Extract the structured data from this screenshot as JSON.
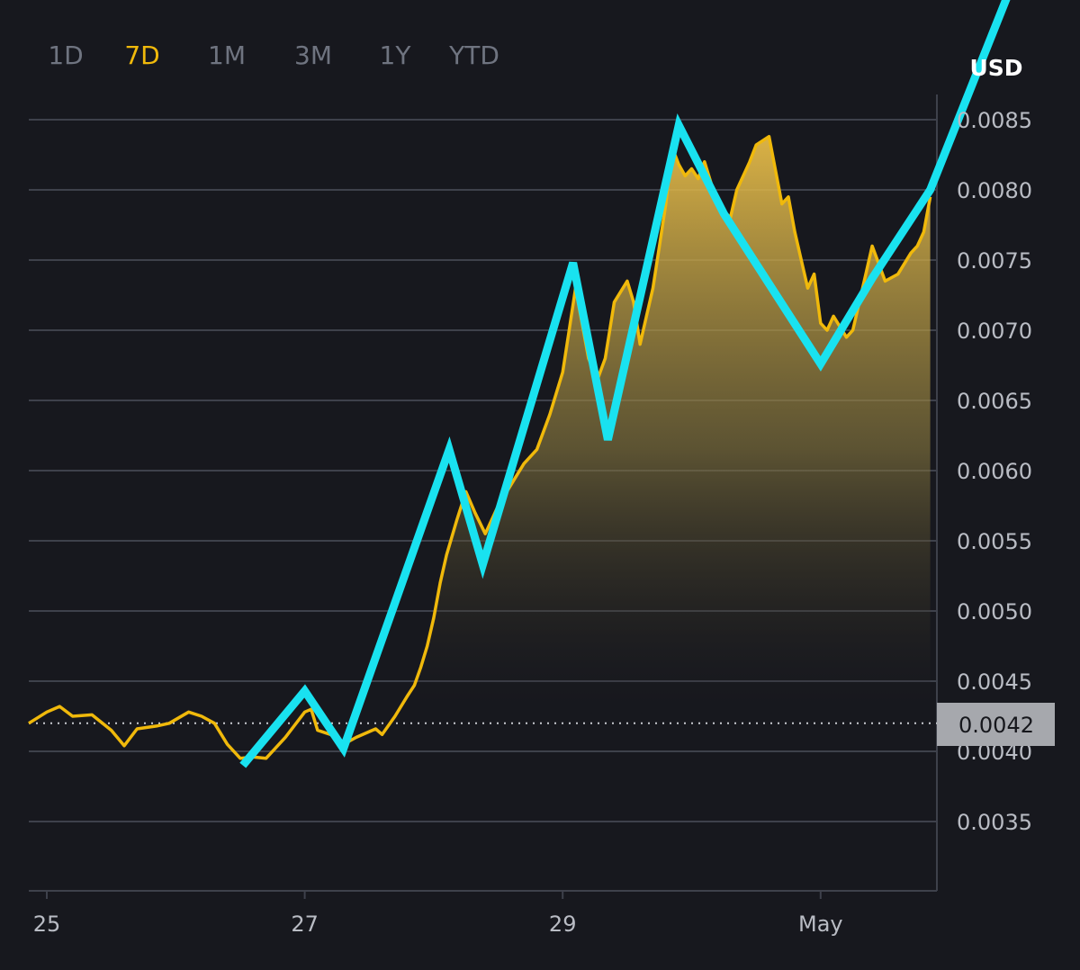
{
  "tabs": [
    {
      "label": "1D",
      "active": false
    },
    {
      "label": "7D",
      "active": true
    },
    {
      "label": "1M",
      "active": false
    },
    {
      "label": "3M",
      "active": false
    },
    {
      "label": "1Y",
      "active": false
    },
    {
      "label": "YTD",
      "active": false
    }
  ],
  "colors": {
    "background": "#17181e",
    "price_line": "#f0b90b",
    "overlay_line": "#19e2f0",
    "grid": "#3e414b",
    "tab_active": "#f0b90b",
    "tab_inactive": "#6f7480",
    "price_tag_bg": "#a6a8ad"
  },
  "chart_data": {
    "type": "line",
    "unit": "USD",
    "ylim": [
      0.003,
      0.0087
    ],
    "y_ticks": [
      "0.0035",
      "0.0040",
      "0.0045",
      "0.0050",
      "0.0055",
      "0.0060",
      "0.0065",
      "0.0070",
      "0.0075",
      "0.0080",
      "0.0085"
    ],
    "x_ticks": [
      {
        "label": "25",
        "t": 0
      },
      {
        "label": "27",
        "t": 2
      },
      {
        "label": "29",
        "t": 4
      },
      {
        "label": "May",
        "t": 6
      }
    ],
    "current_price": {
      "label": "0.0042",
      "value": 0.0042
    },
    "series": [
      {
        "points": [
          [
            -0.14,
            0.0042
          ],
          [
            0.0,
            0.00428
          ],
          [
            0.1,
            0.00432
          ],
          [
            0.2,
            0.00425
          ],
          [
            0.35,
            0.00426
          ],
          [
            0.5,
            0.00415
          ],
          [
            0.6,
            0.00404
          ],
          [
            0.7,
            0.00416
          ],
          [
            0.85,
            0.00418
          ],
          [
            0.95,
            0.0042
          ],
          [
            1.1,
            0.00428
          ],
          [
            1.2,
            0.00425
          ],
          [
            1.3,
            0.0042
          ],
          [
            1.4,
            0.00405
          ],
          [
            1.5,
            0.00395
          ],
          [
            1.6,
            0.00396
          ],
          [
            1.7,
            0.00395
          ],
          [
            1.85,
            0.0041
          ],
          [
            2.0,
            0.00428
          ],
          [
            2.05,
            0.0043
          ],
          [
            2.1,
            0.00415
          ],
          [
            2.2,
            0.00412
          ],
          [
            2.3,
            0.00405
          ],
          [
            2.4,
            0.0041
          ],
          [
            2.55,
            0.00416
          ],
          [
            2.6,
            0.00412
          ],
          [
            2.7,
            0.00425
          ],
          [
            2.8,
            0.0044
          ],
          [
            2.85,
            0.00447
          ],
          [
            2.9,
            0.0046
          ],
          [
            2.95,
            0.00475
          ],
          [
            3.0,
            0.00495
          ],
          [
            3.05,
            0.0052
          ],
          [
            3.1,
            0.0054
          ],
          [
            3.18,
            0.00565
          ],
          [
            3.25,
            0.00585
          ],
          [
            3.32,
            0.0057
          ],
          [
            3.4,
            0.00555
          ],
          [
            3.5,
            0.00575
          ],
          [
            3.6,
            0.0059
          ],
          [
            3.7,
            0.00605
          ],
          [
            3.8,
            0.00615
          ],
          [
            3.9,
            0.0064
          ],
          [
            4.0,
            0.0067
          ],
          [
            4.05,
            0.007
          ],
          [
            4.1,
            0.0073
          ],
          [
            4.15,
            0.00705
          ],
          [
            4.2,
            0.0068
          ],
          [
            4.27,
            0.00665
          ],
          [
            4.33,
            0.0068
          ],
          [
            4.4,
            0.0072
          ],
          [
            4.5,
            0.00735
          ],
          [
            4.55,
            0.0072
          ],
          [
            4.6,
            0.0069
          ],
          [
            4.65,
            0.0071
          ],
          [
            4.7,
            0.0073
          ],
          [
            4.75,
            0.0076
          ],
          [
            4.8,
            0.0079
          ],
          [
            4.85,
            0.0083
          ],
          [
            4.9,
            0.00818
          ],
          [
            4.95,
            0.0081
          ],
          [
            5.0,
            0.00815
          ],
          [
            5.05,
            0.00808
          ],
          [
            5.1,
            0.0082
          ],
          [
            5.2,
            0.0079
          ],
          [
            5.3,
            0.0078
          ],
          [
            5.35,
            0.008
          ],
          [
            5.45,
            0.0082
          ],
          [
            5.5,
            0.00832
          ],
          [
            5.6,
            0.00838
          ],
          [
            5.7,
            0.0079
          ],
          [
            5.75,
            0.00795
          ],
          [
            5.8,
            0.0077
          ],
          [
            5.85,
            0.0075
          ],
          [
            5.9,
            0.0073
          ],
          [
            5.95,
            0.0074
          ],
          [
            6.0,
            0.00705
          ],
          [
            6.05,
            0.007
          ],
          [
            6.1,
            0.0071
          ],
          [
            6.2,
            0.00695
          ],
          [
            6.25,
            0.007
          ],
          [
            6.35,
            0.0074
          ],
          [
            6.4,
            0.0076
          ],
          [
            6.5,
            0.00735
          ],
          [
            6.6,
            0.0074
          ],
          [
            6.7,
            0.00755
          ],
          [
            6.75,
            0.0076
          ],
          [
            6.8,
            0.0077
          ],
          [
            6.85,
            0.00795
          ]
        ]
      },
      {
        "points": [
          [
            1.52,
            0.0039
          ],
          [
            2.0,
            0.00443
          ],
          [
            2.3,
            0.00402
          ],
          [
            3.12,
            0.00615
          ],
          [
            3.38,
            0.00533
          ],
          [
            4.08,
            0.00748
          ],
          [
            4.35,
            0.00622
          ],
          [
            4.9,
            0.00846
          ],
          [
            5.25,
            0.00783
          ],
          [
            6.0,
            0.00676
          ],
          [
            6.4,
            0.00737
          ],
          [
            6.85,
            0.008
          ],
          [
            7.5,
            0.0095
          ]
        ]
      }
    ]
  }
}
